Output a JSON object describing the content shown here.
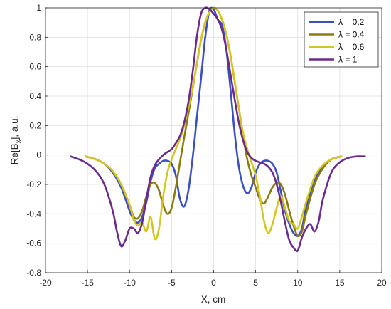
{
  "chart_data": {
    "type": "line",
    "title": "",
    "xlabel": "X, cm",
    "ylabel_main": "Re[B",
    "ylabel_sub": "x",
    "ylabel_tail": "], a.u.",
    "xlim": [
      -20,
      20
    ],
    "ylim": [
      -0.8,
      1
    ],
    "xticks": [
      -20,
      -15,
      -10,
      -5,
      0,
      5,
      10,
      15,
      20
    ],
    "xtick_labels": [
      "-20",
      "-15",
      "-10",
      "-5",
      "0",
      "5",
      "10",
      "15",
      "20"
    ],
    "yticks": [
      -0.8,
      -0.6,
      -0.4,
      -0.2,
      0,
      0.2,
      0.4,
      0.6,
      0.8,
      1
    ],
    "ytick_labels": [
      "-0.8",
      "-0.6",
      "-0.4",
      "-0.2",
      "0",
      "0.2",
      "0.4",
      "0.6",
      "0.8",
      "1"
    ],
    "grid": true,
    "legend_position": "top-right",
    "series": [
      {
        "name": "λ = 0.2",
        "color": "#3b4fc4",
        "x": [
          -15.2,
          -14,
          -13,
          -12,
          -11,
          -10,
          -9.5,
          -9,
          -8.5,
          -8,
          -7.5,
          -7,
          -6.5,
          -6,
          -5.5,
          -5,
          -4.5,
          -4,
          -3.5,
          -3,
          -2.5,
          -2,
          -1.5,
          -1,
          -0.5,
          0,
          0.5,
          1,
          1.5,
          2,
          2.5,
          3,
          3.5,
          4,
          4.5,
          5,
          5.5,
          6,
          6.5,
          7,
          7.5,
          8,
          8.5,
          9,
          9.5,
          10,
          10.5,
          11,
          12,
          13,
          14,
          15.2
        ],
        "y": [
          -0.01,
          -0.03,
          -0.06,
          -0.12,
          -0.22,
          -0.38,
          -0.44,
          -0.46,
          -0.42,
          -0.32,
          -0.18,
          -0.09,
          -0.06,
          -0.04,
          -0.04,
          -0.06,
          -0.14,
          -0.3,
          -0.35,
          -0.24,
          -0.02,
          0.25,
          0.52,
          0.8,
          0.98,
          0.99,
          0.92,
          0.88,
          0.72,
          0.45,
          0.15,
          -0.08,
          -0.21,
          -0.26,
          -0.22,
          -0.12,
          -0.06,
          -0.04,
          -0.04,
          -0.06,
          -0.12,
          -0.25,
          -0.38,
          -0.47,
          -0.53,
          -0.55,
          -0.5,
          -0.36,
          -0.18,
          -0.08,
          -0.03,
          -0.01
        ]
      },
      {
        "name": "λ = 0.4",
        "color": "#8a7a10",
        "x": [
          -15.2,
          -14,
          -13,
          -12,
          -11,
          -10,
          -9.5,
          -9,
          -8.5,
          -8,
          -7.5,
          -7,
          -6.5,
          -6,
          -5.5,
          -5,
          -4.5,
          -4,
          -3.5,
          -3,
          -2.5,
          -2,
          -1.5,
          -1,
          -0.5,
          0,
          0.5,
          1,
          1.5,
          2,
          2.5,
          3,
          3.5,
          4,
          4.5,
          5,
          5.5,
          6,
          6.5,
          7,
          7.5,
          8,
          8.5,
          9,
          9.5,
          10,
          10.5,
          11,
          12,
          13,
          14,
          15.2
        ],
        "y": [
          -0.01,
          -0.03,
          -0.06,
          -0.11,
          -0.2,
          -0.34,
          -0.42,
          -0.43,
          -0.38,
          -0.28,
          -0.2,
          -0.19,
          -0.24,
          -0.34,
          -0.4,
          -0.36,
          -0.22,
          -0.05,
          0.12,
          0.28,
          0.45,
          0.62,
          0.78,
          0.9,
          0.97,
          1.0,
          0.98,
          0.92,
          0.82,
          0.68,
          0.5,
          0.32,
          0.13,
          -0.03,
          -0.14,
          -0.22,
          -0.3,
          -0.33,
          -0.28,
          -0.22,
          -0.19,
          -0.2,
          -0.27,
          -0.38,
          -0.48,
          -0.55,
          -0.52,
          -0.4,
          -0.2,
          -0.09,
          -0.03,
          -0.01
        ]
      },
      {
        "name": "λ = 0.6",
        "color": "#d4c520",
        "x": [
          -15.2,
          -14,
          -13,
          -12,
          -11,
          -10,
          -9.5,
          -9,
          -8.5,
          -8,
          -7.5,
          -7,
          -6.5,
          -6,
          -5.5,
          -5,
          -4.5,
          -4,
          -3.5,
          -3,
          -2.5,
          -2,
          -1.5,
          -1,
          -0.5,
          0,
          0.5,
          1,
          1.5,
          2,
          2.5,
          3,
          3.5,
          4,
          4.5,
          5,
          5.5,
          6,
          6.5,
          7,
          7.5,
          8,
          8.5,
          9,
          9.5,
          10,
          10.5,
          11,
          12,
          13,
          14,
          15.2
        ],
        "y": [
          -0.01,
          -0.03,
          -0.06,
          -0.11,
          -0.2,
          -0.34,
          -0.44,
          -0.48,
          -0.46,
          -0.52,
          -0.42,
          -0.57,
          -0.5,
          -0.28,
          -0.12,
          -0.03,
          0.04,
          0.11,
          0.2,
          0.32,
          0.46,
          0.62,
          0.78,
          0.9,
          0.97,
          1.0,
          0.98,
          0.92,
          0.82,
          0.68,
          0.5,
          0.32,
          0.15,
          0.04,
          -0.05,
          -0.14,
          -0.28,
          -0.45,
          -0.53,
          -0.47,
          -0.36,
          -0.28,
          -0.36,
          -0.45,
          -0.47,
          -0.5,
          -0.42,
          -0.32,
          -0.15,
          -0.07,
          -0.03,
          -0.01
        ]
      },
      {
        "name": "λ = 1",
        "color": "#6b2a8c",
        "x": [
          -17,
          -16,
          -15,
          -14,
          -13,
          -12,
          -11.5,
          -11,
          -10.5,
          -10,
          -9.5,
          -9,
          -8.5,
          -8,
          -7.5,
          -7,
          -6.5,
          -6,
          -5.5,
          -5,
          -4.5,
          -4,
          -3.5,
          -3,
          -2.5,
          -2,
          -1.5,
          -1,
          -0.5,
          0,
          0.5,
          1,
          1.5,
          2,
          2.5,
          3,
          3.5,
          4,
          4.5,
          5,
          5.5,
          6,
          6.5,
          7,
          7.5,
          8,
          8.5,
          9,
          9.5,
          10,
          10.5,
          11,
          11.5,
          12,
          12.5,
          13,
          14,
          15,
          16,
          17,
          18
        ],
        "y": [
          -0.01,
          -0.03,
          -0.06,
          -0.11,
          -0.2,
          -0.38,
          -0.52,
          -0.62,
          -0.58,
          -0.5,
          -0.5,
          -0.53,
          -0.46,
          -0.3,
          -0.15,
          -0.07,
          -0.03,
          0.0,
          0.02,
          0.04,
          0.08,
          0.13,
          0.22,
          0.36,
          0.56,
          0.8,
          0.96,
          1.0,
          0.99,
          0.96,
          0.92,
          0.85,
          0.72,
          0.55,
          0.38,
          0.22,
          0.1,
          0.02,
          -0.02,
          -0.04,
          -0.05,
          -0.06,
          -0.08,
          -0.12,
          -0.2,
          -0.32,
          -0.46,
          -0.58,
          -0.63,
          -0.65,
          -0.56,
          -0.5,
          -0.47,
          -0.52,
          -0.45,
          -0.3,
          -0.12,
          -0.05,
          -0.02,
          -0.01,
          -0.01
        ]
      }
    ]
  }
}
